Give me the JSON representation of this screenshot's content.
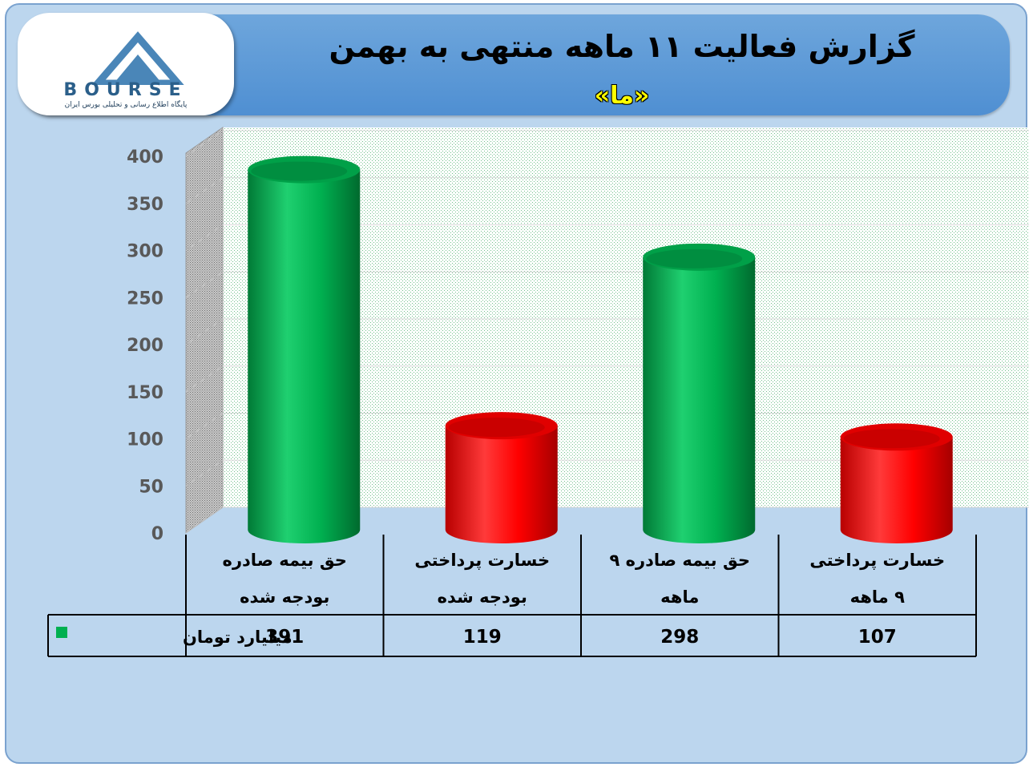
{
  "header": {
    "title": "گزارش فعالیت ۱۱ ماهه منتهی به بهمن",
    "subtitle": "«ما»"
  },
  "logo": {
    "text": "BOURSE",
    "tagline": "پایگاه اطلاع رسانی و تحلیلی بورس ایران",
    "icon": "logo-24-icon"
  },
  "colors": {
    "green": "#00b050",
    "red": "#ff0000",
    "header": "#5b9bd5",
    "background": "#bdd7ee"
  },
  "chart_data": {
    "type": "bar",
    "style": "3d-cylinder",
    "categories": [
      [
        "حق بیمه صادره",
        "بودجه شده"
      ],
      [
        "خسارت پرداختی",
        "بودجه شده"
      ],
      [
        "حق بیمه صادره ۹",
        "ماهه"
      ],
      [
        "خسارت پرداختی",
        "۹ ماهه"
      ]
    ],
    "series": [
      {
        "name": "میلیارد تومان",
        "values": [
          391,
          119,
          298,
          107
        ]
      }
    ],
    "bar_colors": [
      "#00b050",
      "#ff0000",
      "#00b050",
      "#ff0000"
    ],
    "yticks": [
      "0",
      "50",
      "100",
      "150",
      "200",
      "250",
      "300",
      "350",
      "400"
    ],
    "ylim": [
      0,
      400
    ],
    "grid": true,
    "data_table": true
  }
}
